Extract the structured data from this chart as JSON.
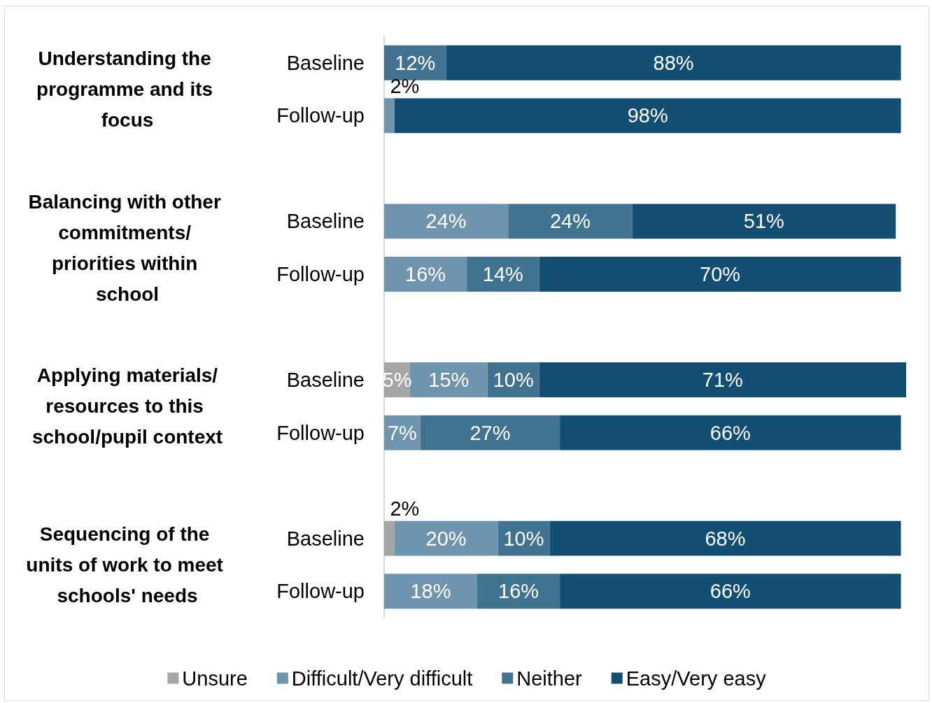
{
  "chart_data": {
    "type": "bar",
    "orientation": "horizontal",
    "stacked": true,
    "legend": "bottom",
    "tick_labels": "y",
    "categories": [
      "Baseline",
      "Follow-up",
      null,
      "Baseline",
      "Follow-up",
      null,
      "Baseline",
      "Follow-up",
      null,
      "Baseline",
      "Follow-up"
    ],
    "annotations": [
      "Understanding the programme and its focus",
      "Balancing with other commitments/ priorities within school",
      "Applying materials/resources to this school/pupil context",
      "Sequencing of the units of work to meet schools' needs"
    ],
    "series": [
      {
        "name": "Unsure",
        "color": "#a6a6a6",
        "values": [
          null,
          null,
          null,
          null,
          null,
          null,
          5,
          null,
          null,
          2,
          null
        ],
        "value_labels": [
          null,
          null,
          null,
          null,
          null,
          null,
          "5%",
          null,
          null,
          "2%",
          null
        ]
      },
      {
        "name": "Difficult/Very difficult",
        "color": "#6f94ad",
        "values": [
          null,
          2,
          null,
          24,
          16,
          null,
          15,
          7,
          null,
          20,
          18
        ],
        "value_labels": [
          null,
          "2%",
          null,
          "24%",
          "16%",
          null,
          "15%",
          "7%",
          null,
          "20%",
          "18%"
        ]
      },
      {
        "name": "Neither",
        "color": "#41728f",
        "values": [
          12,
          null,
          null,
          24,
          14,
          null,
          10,
          27,
          null,
          10,
          16
        ],
        "value_labels": [
          "12%",
          null,
          null,
          "24%",
          "14%",
          null,
          "10%",
          "27%",
          null,
          "10%",
          "16%"
        ]
      },
      {
        "name": "Easy/Very easy",
        "color": "#124e72",
        "values": [
          88,
          98,
          null,
          51,
          70,
          null,
          71,
          66,
          null,
          68,
          66
        ],
        "value_labels": [
          "88%",
          "98%",
          null,
          "51%",
          "70%",
          null,
          "71%",
          "66%",
          null,
          "68%",
          "66%"
        ]
      }
    ]
  }
}
